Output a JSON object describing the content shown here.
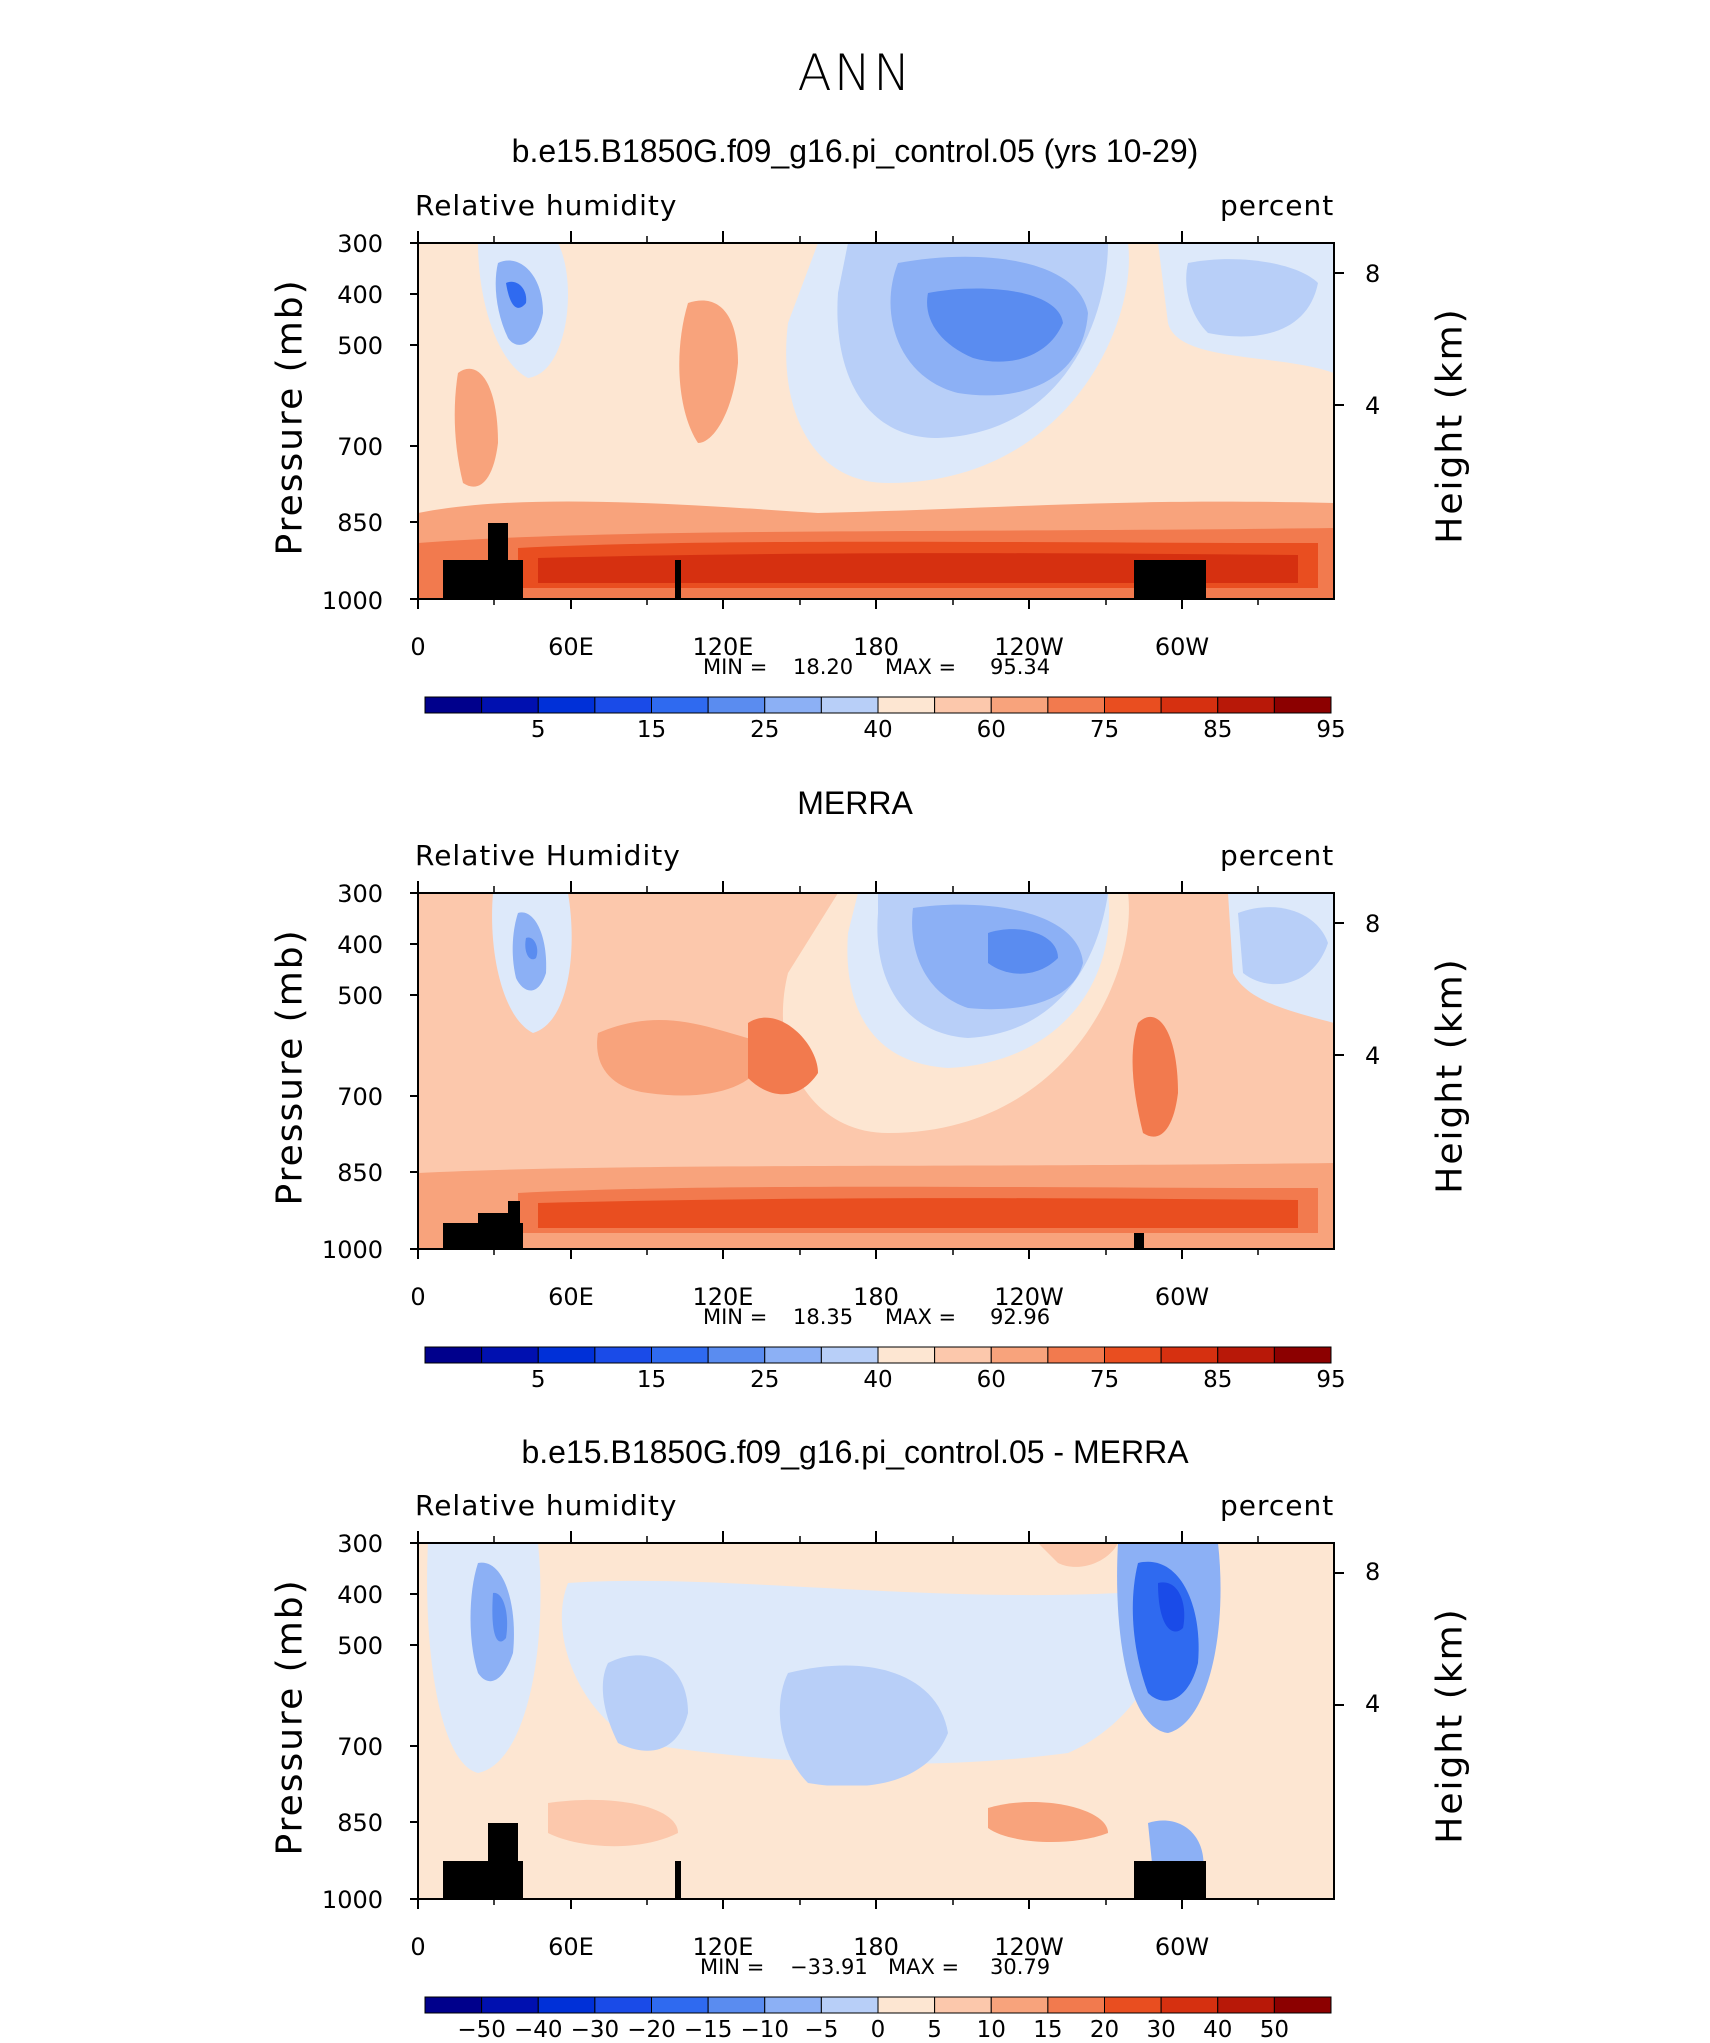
{
  "title": "ANN",
  "panels": [
    {
      "title": "b.e15.B1850G.f09_g16.pi_control.05 (yrs 10-29)",
      "left_label": "Relative humidity",
      "right_label": "percent",
      "ylabel": "Pressure (mb)",
      "y2label": "Height (km)",
      "yticks": [
        "300",
        "400",
        "500",
        "700",
        "850",
        "1000"
      ],
      "y2ticks": [
        "8",
        "4"
      ],
      "xticks": [
        "0",
        "60E",
        "120E",
        "180",
        "120W",
        "60W"
      ],
      "min_label": "MIN =",
      "min_value": "18.20",
      "max_label": "MAX =",
      "max_value": "95.34",
      "colorbar_labels": [
        "5",
        "15",
        "25",
        "40",
        "60",
        "75",
        "85",
        "95"
      ]
    },
    {
      "title": "MERRA",
      "left_label": "Relative Humidity",
      "right_label": "percent",
      "ylabel": "Pressure (mb)",
      "y2label": "Height (km)",
      "yticks": [
        "300",
        "400",
        "500",
        "700",
        "850",
        "1000"
      ],
      "y2ticks": [
        "8",
        "4"
      ],
      "xticks": [
        "0",
        "60E",
        "120E",
        "180",
        "120W",
        "60W"
      ],
      "min_label": "MIN =",
      "min_value": "18.35",
      "max_label": "MAX =",
      "max_value": "92.96",
      "colorbar_labels": [
        "5",
        "15",
        "25",
        "40",
        "60",
        "75",
        "85",
        "95"
      ]
    },
    {
      "title": "b.e15.B1850G.f09_g16.pi_control.05 - MERRA",
      "left_label": "Relative humidity",
      "right_label": "percent",
      "ylabel": "Pressure (mb)",
      "y2label": "Height (km)",
      "yticks": [
        "300",
        "400",
        "500",
        "700",
        "850",
        "1000"
      ],
      "y2ticks": [
        "8",
        "4"
      ],
      "xticks": [
        "0",
        "60E",
        "120E",
        "180",
        "120W",
        "60W"
      ],
      "min_label": "MIN =",
      "min_value": "−33.91",
      "max_label": "MAX =",
      "max_value": "30.79",
      "colorbar_labels": [
        "−50",
        "−40",
        "−30",
        "−20",
        "−15",
        "−10",
        "−5",
        "0",
        "5",
        "10",
        "15",
        "20",
        "30",
        "40",
        "50"
      ]
    }
  ],
  "chart_data": [
    {
      "type": "heatmap",
      "title": "b.e15.B1850G.f09_g16.pi_control.05 (yrs 10-29)",
      "xlabel": "",
      "ylabel": "Pressure (mb)",
      "xlim": [
        0,
        360
      ],
      "ylim_pressure_mb": [
        1000,
        300
      ],
      "levels": [
        5,
        10,
        15,
        20,
        25,
        30,
        40,
        50,
        60,
        65,
        70,
        75,
        80,
        85,
        90,
        95
      ],
      "min": 18.2,
      "max": 95.34,
      "units": "percent"
    },
    {
      "type": "heatmap",
      "title": "MERRA",
      "xlabel": "",
      "ylabel": "Pressure (mb)",
      "xlim": [
        0,
        360
      ],
      "ylim_pressure_mb": [
        1000,
        300
      ],
      "levels": [
        5,
        10,
        15,
        20,
        25,
        30,
        40,
        50,
        60,
        65,
        70,
        75,
        80,
        85,
        90,
        95
      ],
      "min": 18.35,
      "max": 92.96,
      "units": "percent"
    },
    {
      "type": "heatmap",
      "title": "b.e15.B1850G.f09_g16.pi_control.05 - MERRA",
      "xlabel": "",
      "ylabel": "Pressure (mb)",
      "xlim": [
        0,
        360
      ],
      "ylim_pressure_mb": [
        1000,
        300
      ],
      "levels": [
        -50,
        -40,
        -30,
        -20,
        -15,
        -10,
        -5,
        0,
        5,
        10,
        15,
        20,
        30,
        40,
        50
      ],
      "min": -33.91,
      "max": 30.79,
      "units": "percent"
    }
  ],
  "colors": {
    "colorbar": [
      "#00008c",
      "#0010b0",
      "#0030d8",
      "#1a4be8",
      "#2f6af0",
      "#5a8cf0",
      "#8cb0f5",
      "#b8cff8",
      "#dde9fa",
      "#fde6d2",
      "#fcc8ac",
      "#f8a37c",
      "#f27a4e",
      "#e94e20",
      "#d63010",
      "#b81808",
      "#8c0000"
    ]
  }
}
